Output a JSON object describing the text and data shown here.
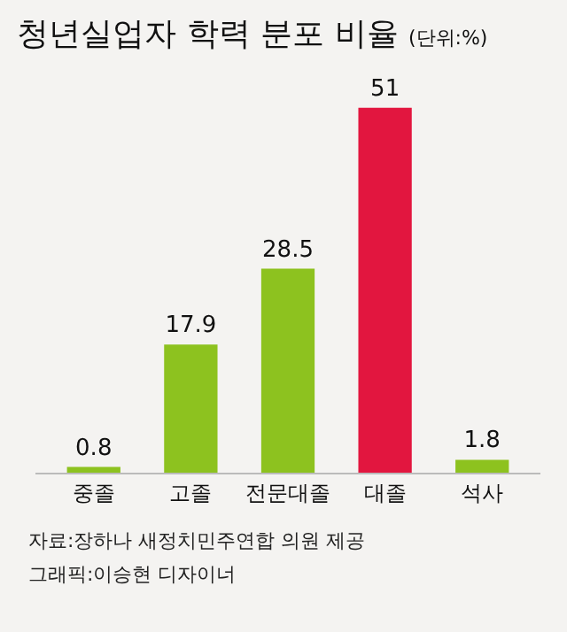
{
  "chart_data": {
    "type": "bar",
    "title": "청년실업자 학력 분포 비율",
    "subtitle": "(단위:%)",
    "categories": [
      "중졸",
      "고졸",
      "전문대졸",
      "대졸",
      "석사"
    ],
    "values": [
      0.8,
      17.9,
      28.5,
      51,
      1.8
    ],
    "colors": [
      "#8dc21f",
      "#8dc21f",
      "#8dc21f",
      "#e2163f",
      "#8dc21f"
    ],
    "data_labels": true,
    "annotations": [
      "자료:장하나 새정치민주연합 의원 제공",
      "그래픽:이승현 디자이너"
    ]
  }
}
